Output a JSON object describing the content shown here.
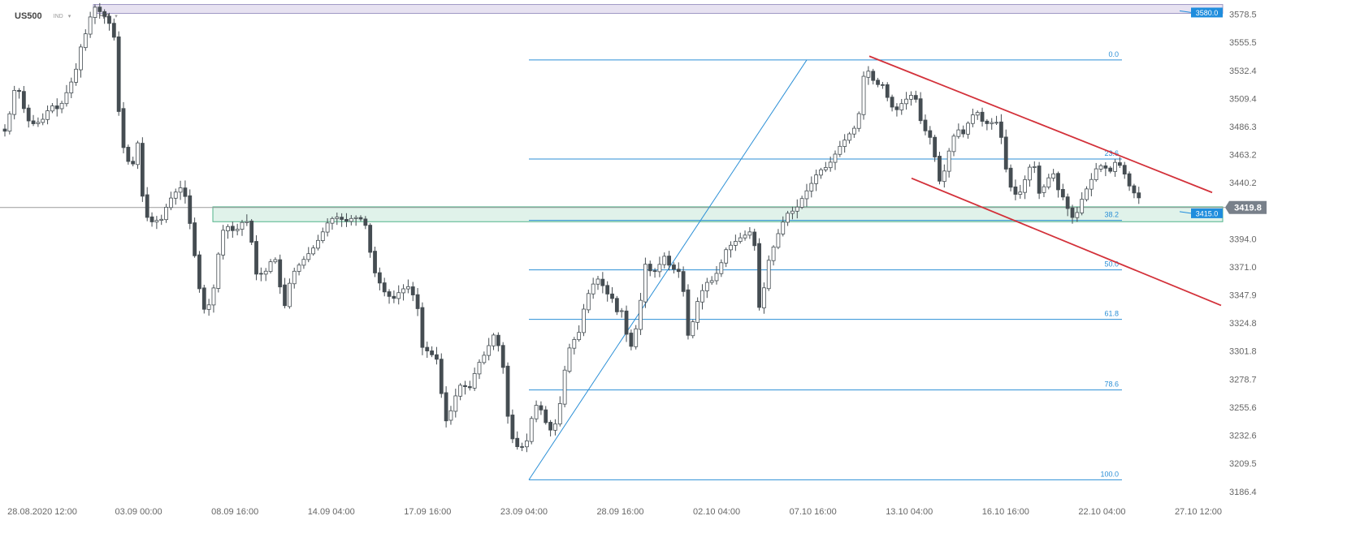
{
  "header": {
    "symbol": "US500",
    "market_tag": "IND",
    "timeframe": "H4",
    "caret": "▾"
  },
  "colors": {
    "up_fill": "#ffffff",
    "candle_dark": "#454d52",
    "fib": "#2b8fd6",
    "channel": "#d3313a",
    "zone_fill": "#e0f2ea",
    "zone_stroke": "#4fb389",
    "top_zone_fill": "#e7e2f1",
    "top_zone_stroke": "#9f99c5",
    "axis_text": "#666666",
    "label_bg": "#1f8ddd",
    "price_bg": "#78808a"
  },
  "chart_data": {
    "type": "candlestick",
    "title": "",
    "ylim": [
      3176.9,
      3594.6
    ],
    "y_ticks": [
      "3578.5",
      "3555.5",
      "3532.4",
      "3509.4",
      "3486.3",
      "3463.2",
      "3440.2",
      "3394.0",
      "3371.0",
      "3347.9",
      "3324.8",
      "3301.8",
      "3278.7",
      "3255.6",
      "3232.6",
      "3209.5",
      "3186.4"
    ],
    "x_ticks": [
      "28.08.2020 12:00",
      "03.09 00:00",
      "08.09 16:00",
      "14.09 04:00",
      "17.09 16:00",
      "23.09 04:00",
      "28.09 16:00",
      "02.10 04:00",
      "07.10 16:00",
      "13.10 04:00",
      "16.10 16:00",
      "22.10 04:00",
      "27.10 12:00"
    ],
    "current_price": "3419.8",
    "current_level": 3419.8,
    "levels": [
      {
        "label": "3580.0",
        "value": 3580.0
      },
      {
        "label": "3415.0",
        "value": 3415.0
      }
    ],
    "zones": [
      {
        "name": "resistance-zone",
        "from": 3579.3,
        "to": 3586.6
      },
      {
        "name": "support-zone",
        "from": 3408.1,
        "to": 3420.3
      }
    ],
    "fibonacci": {
      "anchor_low": 3196.0,
      "anchor_high": 3541.0,
      "levels": [
        {
          "label": "0.0",
          "value": 3541.0
        },
        {
          "label": "23.6",
          "value": 3459.6
        },
        {
          "label": "38.2",
          "value": 3409.2
        },
        {
          "label": "50.0",
          "value": 3368.5
        },
        {
          "label": "61.8",
          "value": 3327.8
        },
        {
          "label": "78.6",
          "value": 3269.8
        },
        {
          "label": "100.0",
          "value": 3196.0
        }
      ]
    },
    "channel": [
      {
        "name": "upper",
        "from": [
          1070,
          3544.1
        ],
        "to": [
          1492,
          3432.1
        ]
      },
      {
        "name": "lower",
        "from": [
          1122,
          3443.8
        ],
        "to": [
          1503,
          3339.3
        ]
      }
    ],
    "path": [
      [
        0,
        3485
      ],
      [
        10,
        3482
      ],
      [
        20,
        3516
      ],
      [
        27,
        3515
      ],
      [
        35,
        3492
      ],
      [
        45,
        3488
      ],
      [
        55,
        3492
      ],
      [
        65,
        3504
      ],
      [
        75,
        3500
      ],
      [
        85,
        3515
      ],
      [
        95,
        3530
      ],
      [
        103,
        3555
      ],
      [
        110,
        3566
      ],
      [
        117,
        3586
      ],
      [
        123,
        3582
      ],
      [
        130,
        3578
      ],
      [
        138,
        3570
      ],
      [
        145,
        3555
      ],
      [
        150,
        3478
      ],
      [
        160,
        3458
      ],
      [
        165,
        3452
      ],
      [
        172,
        3473
      ],
      [
        178,
        3428
      ],
      [
        186,
        3405
      ],
      [
        192,
        3410
      ],
      [
        200,
        3408
      ],
      [
        210,
        3425
      ],
      [
        218,
        3432
      ],
      [
        228,
        3438
      ],
      [
        238,
        3400
      ],
      [
        245,
        3366
      ],
      [
        252,
        3335
      ],
      [
        260,
        3340
      ],
      [
        266,
        3355
      ],
      [
        272,
        3385
      ],
      [
        280,
        3410
      ],
      [
        285,
        3400
      ],
      [
        295,
        3402
      ],
      [
        305,
        3412
      ],
      [
        312,
        3392
      ],
      [
        318,
        3365
      ],
      [
        328,
        3365
      ],
      [
        335,
        3375
      ],
      [
        345,
        3378
      ],
      [
        350,
        3325
      ],
      [
        355,
        3348
      ],
      [
        362,
        3365
      ],
      [
        370,
        3372
      ],
      [
        380,
        3380
      ],
      [
        390,
        3388
      ],
      [
        400,
        3400
      ],
      [
        408,
        3410
      ],
      [
        418,
        3412
      ],
      [
        428,
        3408
      ],
      [
        438,
        3412
      ],
      [
        448,
        3410
      ],
      [
        455,
        3402
      ],
      [
        460,
        3372
      ],
      [
        468,
        3360
      ],
      [
        476,
        3350
      ],
      [
        486,
        3344
      ],
      [
        496,
        3352
      ],
      [
        506,
        3355
      ],
      [
        516,
        3340
      ],
      [
        522,
        3305
      ],
      [
        532,
        3300
      ],
      [
        540,
        3295
      ],
      [
        548,
        3256
      ],
      [
        553,
        3240
      ],
      [
        560,
        3260
      ],
      [
        570,
        3275
      ],
      [
        580,
        3270
      ],
      [
        590,
        3290
      ],
      [
        600,
        3300
      ],
      [
        610,
        3315
      ],
      [
        620,
        3300
      ],
      [
        628,
        3245
      ],
      [
        635,
        3225
      ],
      [
        642,
        3222
      ],
      [
        650,
        3225
      ],
      [
        656,
        3245
      ],
      [
        663,
        3258
      ],
      [
        670,
        3252
      ],
      [
        678,
        3235
      ],
      [
        686,
        3242
      ],
      [
        694,
        3265
      ],
      [
        700,
        3300
      ],
      [
        708,
        3310
      ],
      [
        716,
        3318
      ],
      [
        722,
        3340
      ],
      [
        730,
        3355
      ],
      [
        740,
        3362
      ],
      [
        748,
        3350
      ],
      [
        756,
        3345
      ],
      [
        764,
        3330
      ],
      [
        770,
        3338
      ],
      [
        776,
        3300
      ],
      [
        782,
        3310
      ],
      [
        790,
        3335
      ],
      [
        795,
        3375
      ],
      [
        800,
        3370
      ],
      [
        806,
        3365
      ],
      [
        812,
        3370
      ],
      [
        820,
        3380
      ],
      [
        828,
        3370
      ],
      [
        836,
        3368
      ],
      [
        842,
        3365
      ],
      [
        848,
        3312
      ],
      [
        855,
        3325
      ],
      [
        862,
        3345
      ],
      [
        872,
        3358
      ],
      [
        880,
        3360
      ],
      [
        888,
        3370
      ],
      [
        896,
        3385
      ],
      [
        904,
        3390
      ],
      [
        914,
        3395
      ],
      [
        922,
        3398
      ],
      [
        930,
        3402
      ],
      [
        936,
        3335
      ],
      [
        942,
        3350
      ],
      [
        948,
        3375
      ],
      [
        956,
        3390
      ],
      [
        964,
        3405
      ],
      [
        972,
        3415
      ],
      [
        982,
        3418
      ],
      [
        992,
        3430
      ],
      [
        1000,
        3438
      ],
      [
        1010,
        3450
      ],
      [
        1018,
        3452
      ],
      [
        1026,
        3458
      ],
      [
        1034,
        3468
      ],
      [
        1042,
        3475
      ],
      [
        1050,
        3482
      ],
      [
        1058,
        3488
      ],
      [
        1066,
        3530
      ],
      [
        1072,
        3532
      ],
      [
        1080,
        3520
      ],
      [
        1088,
        3522
      ],
      [
        1096,
        3508
      ],
      [
        1104,
        3498
      ],
      [
        1112,
        3505
      ],
      [
        1120,
        3510
      ],
      [
        1128,
        3514
      ],
      [
        1136,
        3490
      ],
      [
        1142,
        3482
      ],
      [
        1150,
        3475
      ],
      [
        1158,
        3440
      ],
      [
        1165,
        3450
      ],
      [
        1172,
        3470
      ],
      [
        1180,
        3485
      ],
      [
        1188,
        3480
      ],
      [
        1196,
        3492
      ],
      [
        1204,
        3500
      ],
      [
        1212,
        3490
      ],
      [
        1220,
        3488
      ],
      [
        1228,
        3492
      ],
      [
        1236,
        3475
      ],
      [
        1242,
        3445
      ],
      [
        1250,
        3430
      ],
      [
        1258,
        3432
      ],
      [
        1266,
        3446
      ],
      [
        1274,
        3460
      ],
      [
        1282,
        3430
      ],
      [
        1290,
        3440
      ],
      [
        1298,
        3450
      ],
      [
        1306,
        3432
      ],
      [
        1314,
        3426
      ],
      [
        1320,
        3410
      ],
      [
        1328,
        3415
      ],
      [
        1336,
        3430
      ],
      [
        1344,
        3440
      ],
      [
        1352,
        3452
      ],
      [
        1360,
        3455
      ],
      [
        1368,
        3448
      ],
      [
        1376,
        3458
      ],
      [
        1384,
        3452
      ],
      [
        1392,
        3438
      ],
      [
        1398,
        3432
      ],
      [
        1404,
        3428
      ],
      [
        1408,
        3423
      ]
    ]
  }
}
